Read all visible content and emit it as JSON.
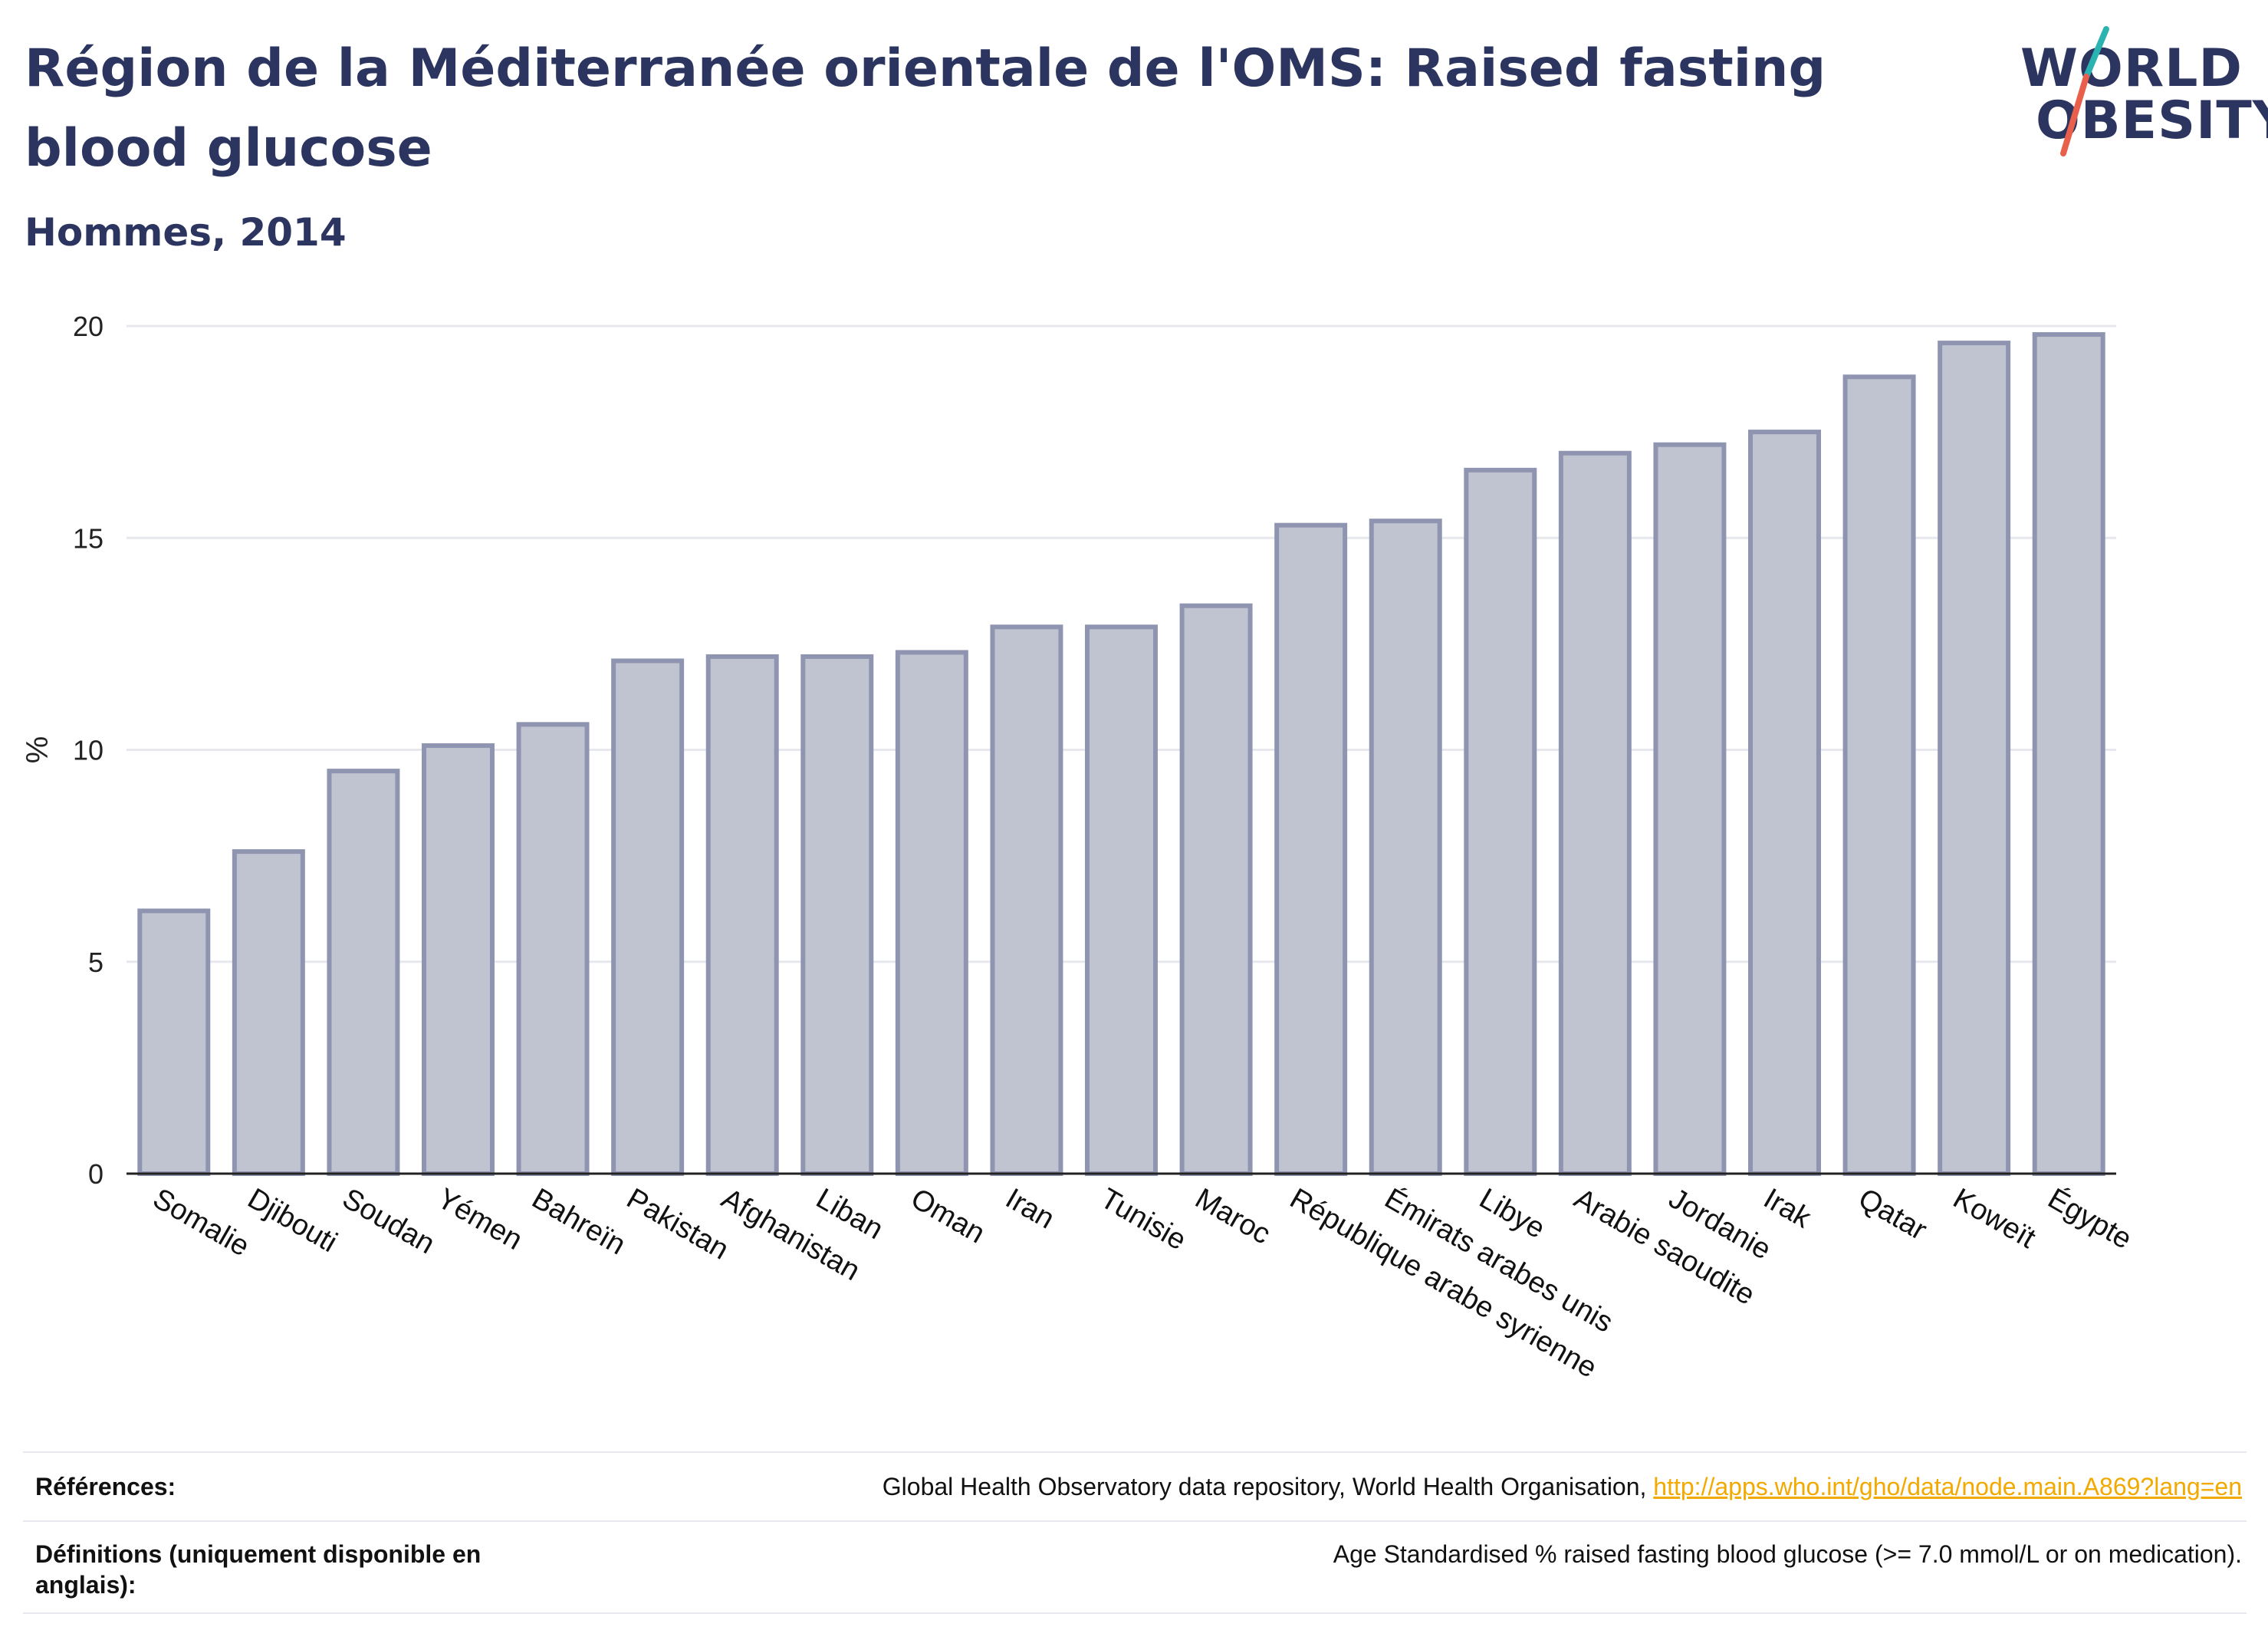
{
  "header": {
    "title": "Région de la Méditerranée orientale de l'OMS: Raised fasting blood glucose",
    "subtitle": "Hommes, 2014"
  },
  "logo": {
    "line1": "WORLD",
    "line2": "OBESITY",
    "colors": {
      "text": "#2b3560",
      "slash_top": "#2bb3b1",
      "slash_bottom": "#e8604c"
    }
  },
  "chart_data": {
    "type": "bar",
    "title": "Région de la Méditerranée orientale de l'OMS: Raised fasting blood glucose",
    "subtitle": "Hommes, 2014",
    "xlabel": "",
    "ylabel": "%",
    "ylim": [
      0,
      20
    ],
    "yticks": [
      0,
      5,
      10,
      15,
      20
    ],
    "grid": true,
    "categories": [
      "Somalie",
      "Djibouti",
      "Soudan",
      "Yémen",
      "Bahreïn",
      "Pakistan",
      "Afghanistan",
      "Liban",
      "Oman",
      "Iran",
      "Tunisie",
      "Maroc",
      "République arabe syrienne",
      "Émirats arabes unis",
      "Libye",
      "Arabie saoudite",
      "Jordanie",
      "Irak",
      "Qatar",
      "Koweït",
      "Égypte"
    ],
    "values": [
      6.2,
      7.6,
      9.5,
      10.1,
      10.6,
      12.1,
      12.2,
      12.2,
      12.3,
      12.9,
      12.9,
      13.4,
      15.3,
      15.4,
      16.6,
      17.0,
      17.2,
      17.5,
      18.8,
      19.6,
      19.8
    ],
    "colors": {
      "bar_fill": "#c0c3d0",
      "bar_stroke": "#8f95b0",
      "grid": "#e6e8ee",
      "axis": "#222222"
    }
  },
  "footer": {
    "references_label": "Références:",
    "references_text": "Global Health Observatory data repository, World Health Organisation, ",
    "references_link": "http://apps.who.int/gho/data/node.main.A869?lang=en",
    "definitions_label": "Définitions (uniquement disponible en anglais):",
    "definitions_text": "Age Standardised % raised fasting blood glucose (>= 7.0 mmol/L or on medication)."
  }
}
